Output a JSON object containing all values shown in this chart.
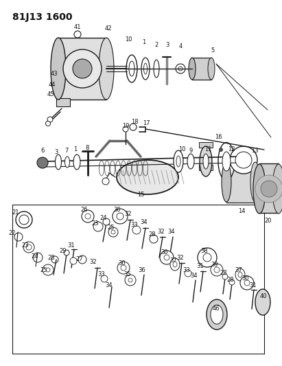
{
  "title": "81J13 1600",
  "bg_color": "#ffffff",
  "fig_width": 4.11,
  "fig_height": 5.33,
  "dpi": 100,
  "title_fontsize": 10,
  "title_fontweight": "bold",
  "line_color": "#1a1a1a",
  "text_color": "#111111",
  "label_fontsize": 6.0
}
